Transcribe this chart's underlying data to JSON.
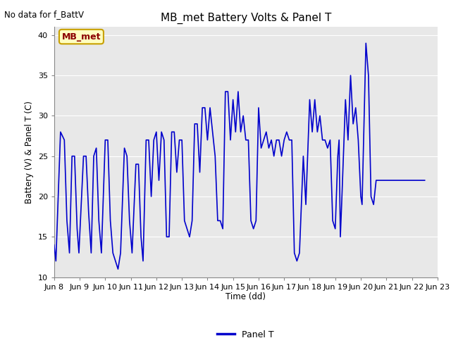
{
  "title": "MB_met Battery Volts & Panel T",
  "no_data_label": "No data for f_BattV",
  "ylabel": "Battery (V) & Panel T (C)",
  "xlabel": "Time (dd)",
  "legend_label": "Panel T",
  "annotation_label": "MB_met",
  "ylim": [
    10,
    41
  ],
  "yticks": [
    10,
    15,
    20,
    25,
    30,
    35,
    40
  ],
  "line_color": "#0000cc",
  "line_width": 1.2,
  "bg_color": "#e8e8e8",
  "annotation_box_facecolor": "#ffffc0",
  "annotation_box_edgecolor": "#c8a000",
  "annotation_text_color": "#8b0000",
  "xtick_labels": [
    "Jun 8",
    "Jun 9",
    "Jun 10",
    "Jun 11",
    "Jun 12",
    "Jun 13",
    "Jun 14",
    "Jun 15",
    "Jun 16",
    "Jun 17",
    "Jun 18",
    "Jun 19",
    "Jun 20",
    "Jun 21",
    "Jun 22",
    "Jun 23"
  ],
  "key_points": [
    [
      0.0,
      14
    ],
    [
      0.07,
      12
    ],
    [
      0.25,
      28
    ],
    [
      0.4,
      27
    ],
    [
      0.5,
      17
    ],
    [
      0.6,
      13
    ],
    [
      0.7,
      25
    ],
    [
      0.8,
      25
    ],
    [
      0.9,
      16
    ],
    [
      0.97,
      13
    ],
    [
      1.15,
      25
    ],
    [
      1.25,
      25
    ],
    [
      1.35,
      18
    ],
    [
      1.45,
      13
    ],
    [
      1.55,
      25
    ],
    [
      1.65,
      26
    ],
    [
      1.75,
      17
    ],
    [
      1.85,
      13
    ],
    [
      2.0,
      27
    ],
    [
      2.1,
      27
    ],
    [
      2.2,
      17
    ],
    [
      2.3,
      13
    ],
    [
      2.5,
      11
    ],
    [
      2.6,
      13
    ],
    [
      2.75,
      26
    ],
    [
      2.85,
      25
    ],
    [
      2.95,
      17
    ],
    [
      3.05,
      13
    ],
    [
      3.2,
      24
    ],
    [
      3.3,
      24
    ],
    [
      3.4,
      15
    ],
    [
      3.48,
      12
    ],
    [
      3.6,
      27
    ],
    [
      3.7,
      27
    ],
    [
      3.8,
      20
    ],
    [
      3.9,
      27
    ],
    [
      4.0,
      28
    ],
    [
      4.1,
      22
    ],
    [
      4.2,
      28
    ],
    [
      4.3,
      27
    ],
    [
      4.4,
      15
    ],
    [
      4.5,
      15
    ],
    [
      4.6,
      28
    ],
    [
      4.7,
      28
    ],
    [
      4.8,
      23
    ],
    [
      4.9,
      27
    ],
    [
      5.0,
      27
    ],
    [
      5.1,
      17
    ],
    [
      5.2,
      16
    ],
    [
      5.3,
      15
    ],
    [
      5.4,
      17
    ],
    [
      5.5,
      29
    ],
    [
      5.6,
      29
    ],
    [
      5.7,
      23
    ],
    [
      5.8,
      31
    ],
    [
      5.9,
      31
    ],
    [
      6.0,
      27
    ],
    [
      6.1,
      31
    ],
    [
      6.2,
      28
    ],
    [
      6.3,
      25
    ],
    [
      6.4,
      17
    ],
    [
      6.5,
      17
    ],
    [
      6.6,
      16
    ],
    [
      6.7,
      33
    ],
    [
      6.8,
      33
    ],
    [
      6.9,
      27
    ],
    [
      7.0,
      32
    ],
    [
      7.1,
      28
    ],
    [
      7.2,
      33
    ],
    [
      7.3,
      28
    ],
    [
      7.4,
      30
    ],
    [
      7.5,
      27
    ],
    [
      7.6,
      27
    ],
    [
      7.7,
      17
    ],
    [
      7.8,
      16
    ],
    [
      7.9,
      17
    ],
    [
      8.0,
      31
    ],
    [
      8.1,
      26
    ],
    [
      8.2,
      27
    ],
    [
      8.3,
      28
    ],
    [
      8.4,
      26
    ],
    [
      8.5,
      27
    ],
    [
      8.6,
      25
    ],
    [
      8.7,
      27
    ],
    [
      8.8,
      27
    ],
    [
      8.9,
      25
    ],
    [
      9.0,
      27
    ],
    [
      9.1,
      28
    ],
    [
      9.2,
      27
    ],
    [
      9.3,
      27
    ],
    [
      9.4,
      13
    ],
    [
      9.5,
      12
    ],
    [
      9.6,
      13
    ],
    [
      9.75,
      25
    ],
    [
      9.85,
      19
    ],
    [
      10.0,
      32
    ],
    [
      10.1,
      28
    ],
    [
      10.2,
      32
    ],
    [
      10.3,
      28
    ],
    [
      10.4,
      30
    ],
    [
      10.5,
      27
    ],
    [
      10.6,
      27
    ],
    [
      10.7,
      26
    ],
    [
      10.8,
      27
    ],
    [
      10.9,
      17
    ],
    [
      11.0,
      16
    ],
    [
      11.1,
      25
    ],
    [
      11.15,
      27
    ],
    [
      11.2,
      15
    ],
    [
      11.25,
      19
    ],
    [
      11.4,
      32
    ],
    [
      11.5,
      27
    ],
    [
      11.6,
      35
    ],
    [
      11.7,
      29
    ],
    [
      11.8,
      31
    ],
    [
      11.9,
      27
    ],
    [
      12.0,
      20
    ],
    [
      12.05,
      19
    ],
    [
      12.2,
      39
    ],
    [
      12.3,
      35
    ],
    [
      12.4,
      20
    ],
    [
      12.5,
      19
    ],
    [
      12.6,
      22
    ],
    [
      14.5,
      22
    ]
  ]
}
